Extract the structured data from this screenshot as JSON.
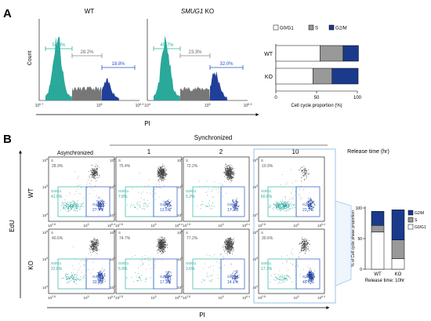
{
  "panel_a": {
    "letter": "A",
    "histograms": [
      {
        "title": "WT",
        "title_italic": "",
        "title_suffix": "",
        "g0g1": "54.4%",
        "s": "28.2%",
        "g2m": "18.8%",
        "ticks": [
          "10^0.7",
          "10^5",
          "10^6.3"
        ]
      },
      {
        "title": "",
        "title_italic": "SMUG1",
        "title_suffix": " KO",
        "g0g1": "45.7%",
        "s": "23.3%",
        "g2m": "32.0%",
        "ticks": [
          "10^4",
          "10^5",
          "10^6.3"
        ]
      }
    ],
    "y_label": "Count",
    "x_label": "PI",
    "bar_chart": {
      "chart_data": {
        "type": "bar",
        "orientation": "horizontal",
        "stacked": true,
        "categories": [
          "WT",
          "KO"
        ],
        "series": [
          {
            "name": "G0/G1",
            "values": [
              54.4,
              45.7
            ],
            "color": "#ffffff"
          },
          {
            "name": "S",
            "values": [
              28.2,
              23.3
            ],
            "color": "#999999"
          },
          {
            "name": "G2/M",
            "values": [
              18.8,
              32.0
            ],
            "color": "#1b3a8c"
          }
        ],
        "xlabel": "Cell cycle proportion  (%)",
        "xlim": [
          0,
          100
        ],
        "xticks": [
          "0",
          "50",
          "100"
        ],
        "legend": "top"
      }
    }
  },
  "panel_b": {
    "letter": "B",
    "synchronized_label": "Synchronized",
    "asynchronized_label": "Asynchronized",
    "columns": [
      "1",
      "2",
      "10"
    ],
    "release_label": "Release time (hr)",
    "y_label": "EdU",
    "x_label": "PI",
    "rows": [
      {
        "label": "WT",
        "plots": [
          {
            "s": "28.9%",
            "g0g1": "41.9%",
            "g2m": "27.7%"
          },
          {
            "s": "75.4%",
            "g0g1": "7.8%",
            "g2m": "13.5%"
          },
          {
            "s": "72.2%",
            "g0g1": "5.2%",
            "g2m": "17.2%"
          },
          {
            "s": "10.9%",
            "g0g1": "60.6%",
            "g2m": "23.1%"
          }
        ]
      },
      {
        "label": "KO",
        "plots": [
          {
            "s": "40.6%",
            "g0g1": "22.8%",
            "g2m": "33.3%"
          },
          {
            "s": "74.7%",
            "g0g1": "5.9%",
            "g2m": "17.3%"
          },
          {
            "s": "77.2%",
            "g0g1": "3.6%",
            "g2m": "14.1%"
          },
          {
            "s": "30.6%",
            "g0g1": "17.3%",
            "g2m": "49.1%"
          }
        ]
      }
    ],
    "gate_labels": {
      "s": "S",
      "g0g1": "G0/G1",
      "g2m": "G2/M"
    },
    "axis_ticks": {
      "x": [
        "10^2.8",
        "10^5",
        "10^6.4"
      ],
      "y": [
        "10^4",
        "10^5",
        "10^6"
      ]
    },
    "bar_chart": {
      "chart_data": {
        "type": "bar",
        "stacked": true,
        "categories": [
          "WT",
          "KO"
        ],
        "series": [
          {
            "name": "G0/G1",
            "values": [
              60.6,
              17.3
            ],
            "color": "#ffffff"
          },
          {
            "name": "S",
            "values": [
              10.9,
              30.6
            ],
            "color": "#999999"
          },
          {
            "name": "G2/M",
            "values": [
              23.1,
              49.1
            ],
            "color": "#1b3a8c"
          }
        ],
        "ylabel": "% of Cell cycle phase proportion",
        "xlabel": "Release time: 10hr",
        "ylim": [
          0,
          100
        ],
        "yticks": [
          "0",
          "50",
          "100"
        ],
        "legend": "right"
      }
    }
  }
}
